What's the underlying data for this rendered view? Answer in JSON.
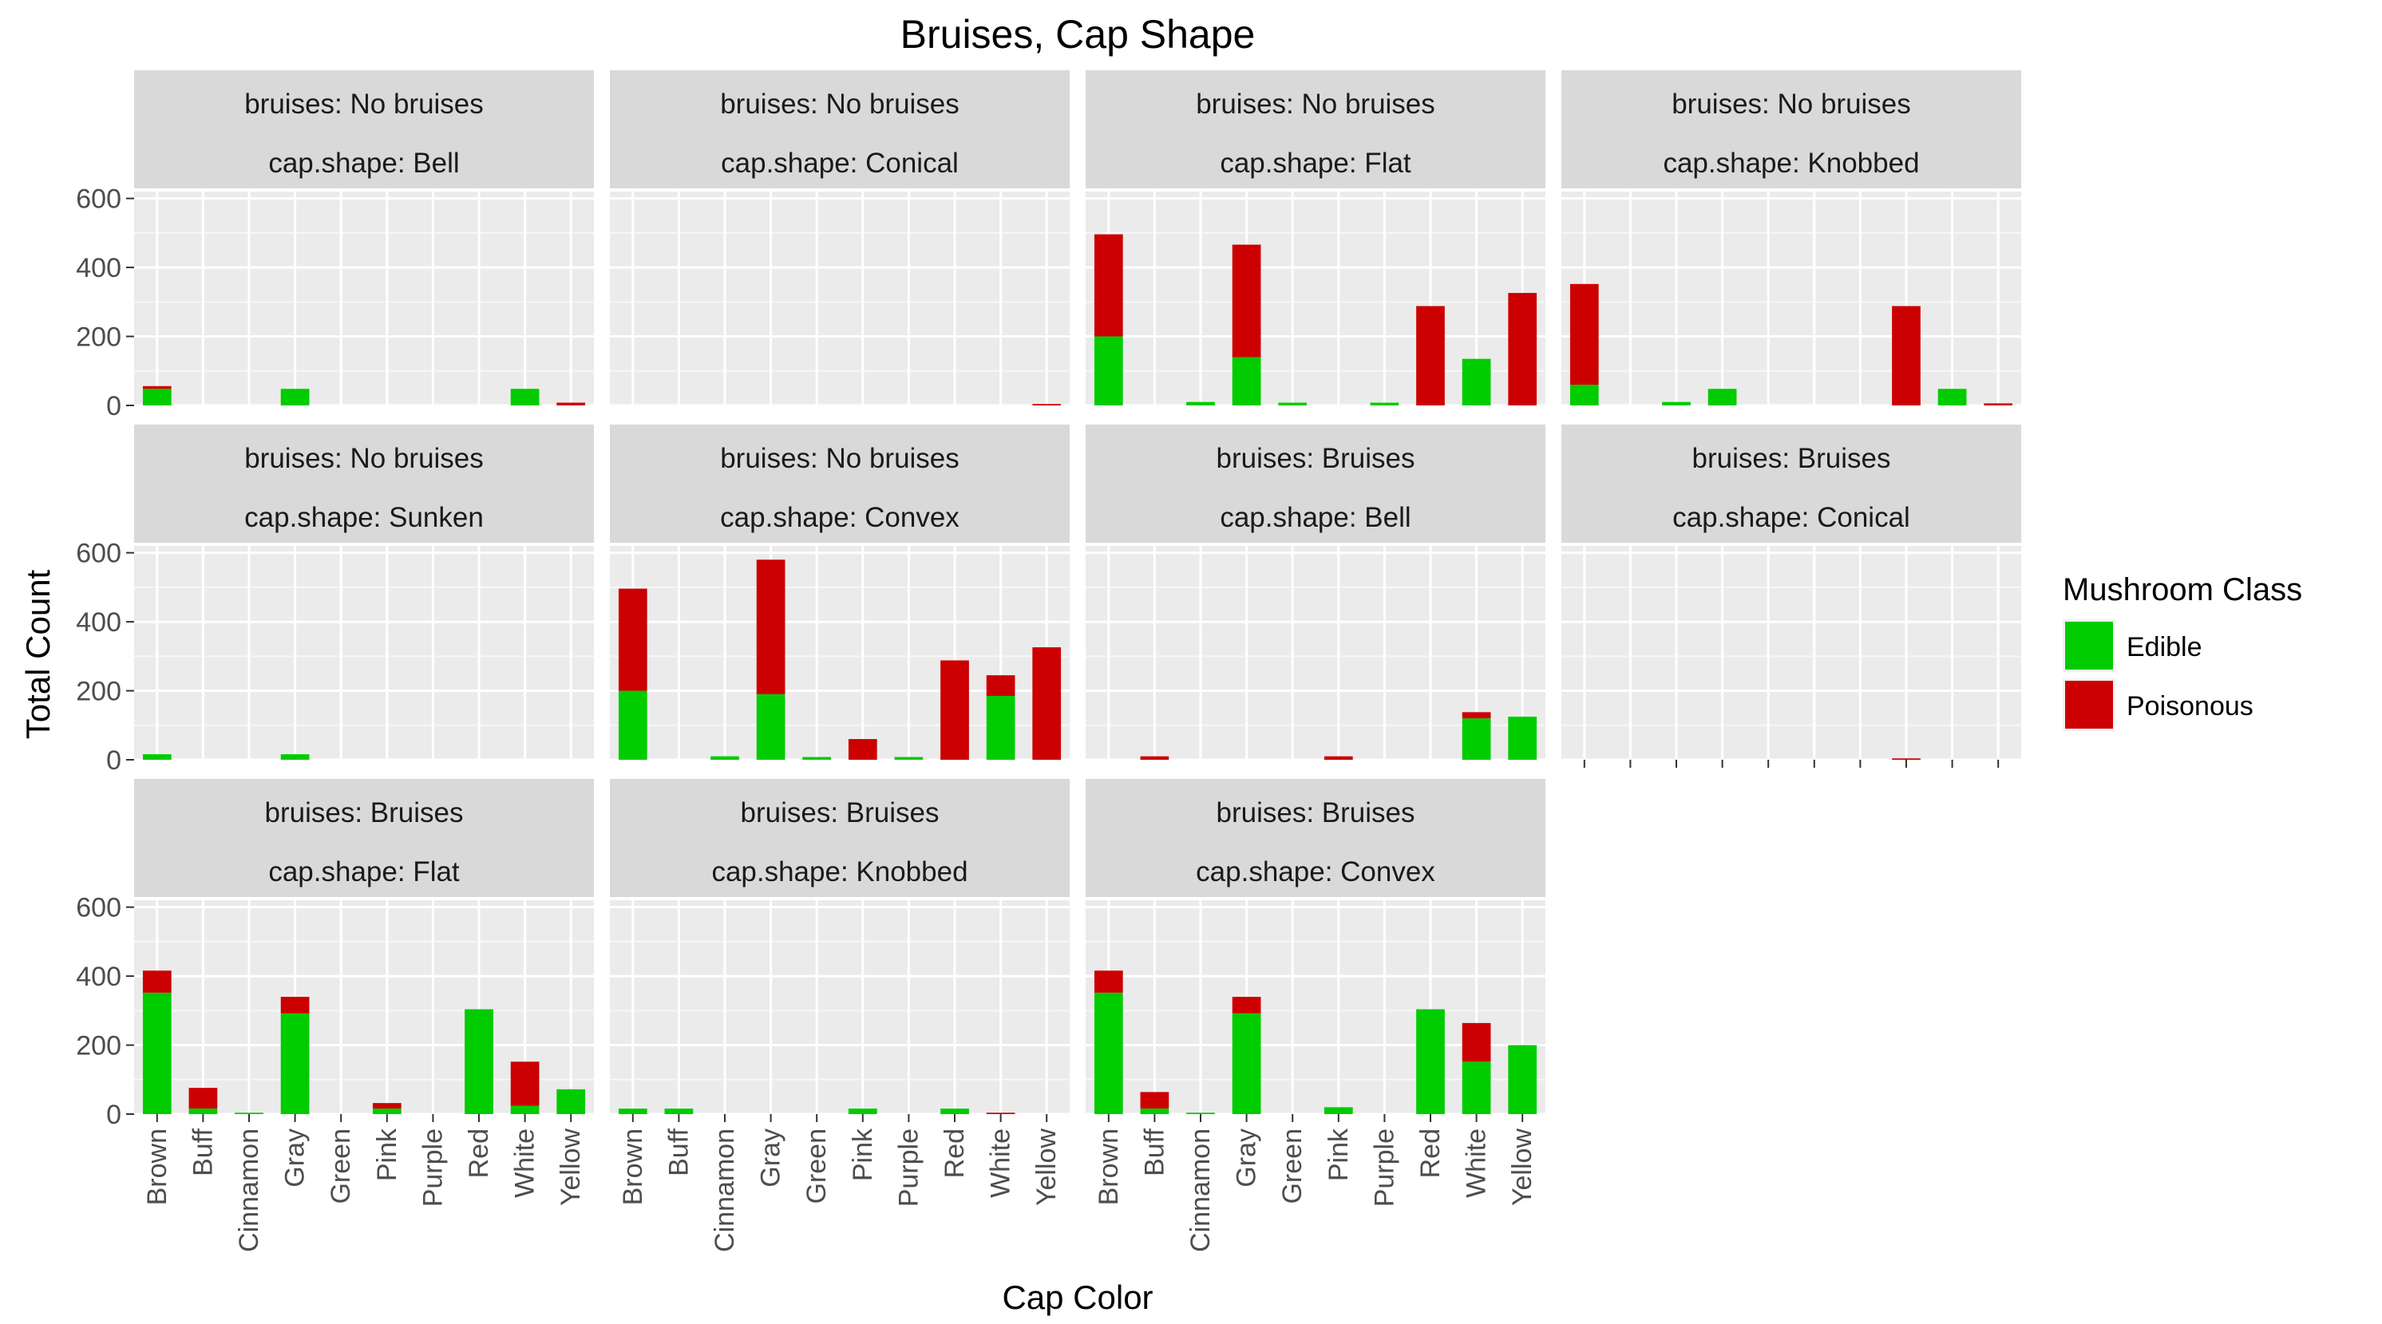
{
  "chart_data": {
    "type": "bar",
    "stacked": true,
    "title": "Bruises, Cap Shape",
    "xlabel": "Cap Color",
    "ylabel": "Total Count",
    "ylim": [
      0,
      620
    ],
    "yticks": [
      0,
      200,
      400,
      600
    ],
    "categories": [
      "Brown",
      "Buff",
      "Cinnamon",
      "Gray",
      "Green",
      "Pink",
      "Purple",
      "Red",
      "White",
      "Yellow"
    ],
    "legend": {
      "title": "Mushroom Class",
      "placement": "right",
      "entries": [
        {
          "name": "Edible",
          "color": "#00cc00"
        },
        {
          "name": "Poisonous",
          "color": "#cc0000"
        }
      ]
    },
    "grid": true,
    "panels": [
      {
        "line1": "bruises: No bruises",
        "line2": "cap.shape: Bell",
        "edible": [
          48,
          0,
          0,
          48,
          0,
          0,
          0,
          0,
          48,
          0
        ],
        "poisonous": [
          8,
          0,
          0,
          0,
          0,
          0,
          0,
          0,
          0,
          8
        ]
      },
      {
        "line1": "bruises: No bruises",
        "line2": "cap.shape: Conical",
        "edible": [
          0,
          0,
          0,
          0,
          0,
          0,
          0,
          0,
          0,
          0
        ],
        "poisonous": [
          0,
          0,
          0,
          0,
          0,
          0,
          0,
          0,
          0,
          4
        ]
      },
      {
        "line1": "bruises: No bruises",
        "line2": "cap.shape: Flat",
        "edible": [
          200,
          0,
          10,
          140,
          8,
          0,
          8,
          0,
          135,
          0
        ],
        "poisonous": [
          296,
          0,
          0,
          326,
          0,
          0,
          0,
          288,
          0,
          326
        ]
      },
      {
        "line1": "bruises: No bruises",
        "line2": "cap.shape: Knobbed",
        "edible": [
          60,
          0,
          10,
          48,
          0,
          0,
          0,
          0,
          48,
          0
        ],
        "poisonous": [
          292,
          0,
          0,
          0,
          0,
          0,
          0,
          288,
          0,
          6
        ]
      },
      {
        "line1": "bruises: No bruises",
        "line2": "cap.shape: Sunken",
        "edible": [
          16,
          0,
          0,
          16,
          0,
          0,
          0,
          0,
          0,
          0
        ],
        "poisonous": [
          0,
          0,
          0,
          0,
          0,
          0,
          0,
          0,
          0,
          0
        ]
      },
      {
        "line1": "bruises: No bruises",
        "line2": "cap.shape: Convex",
        "edible": [
          200,
          0,
          10,
          190,
          8,
          0,
          8,
          0,
          185,
          0
        ],
        "poisonous": [
          296,
          0,
          0,
          390,
          0,
          60,
          0,
          288,
          60,
          326
        ]
      },
      {
        "line1": "bruises: Bruises",
        "line2": "cap.shape: Bell",
        "edible": [
          0,
          0,
          0,
          0,
          0,
          0,
          0,
          0,
          120,
          125
        ],
        "poisonous": [
          0,
          10,
          0,
          0,
          0,
          10,
          0,
          0,
          18,
          0
        ]
      },
      {
        "line1": "bruises: Bruises",
        "line2": "cap.shape: Conical",
        "edible": [
          0,
          0,
          0,
          0,
          0,
          0,
          0,
          0,
          0,
          0
        ],
        "poisonous": [
          0,
          0,
          0,
          0,
          0,
          0,
          0,
          4,
          0,
          0
        ]
      },
      {
        "line1": "bruises: Bruises",
        "line2": "cap.shape: Flat",
        "edible": [
          352,
          16,
          4,
          292,
          0,
          16,
          0,
          304,
          24,
          72
        ],
        "poisonous": [
          64,
          60,
          0,
          48,
          0,
          16,
          0,
          0,
          128,
          0
        ]
      },
      {
        "line1": "bruises: Bruises",
        "line2": "cap.shape: Knobbed",
        "edible": [
          16,
          16,
          0,
          0,
          0,
          16,
          0,
          16,
          0,
          0
        ],
        "poisonous": [
          0,
          0,
          0,
          0,
          0,
          0,
          0,
          0,
          4,
          0
        ]
      },
      {
        "line1": "bruises: Bruises",
        "line2": "cap.shape: Convex",
        "edible": [
          352,
          16,
          4,
          292,
          0,
          20,
          0,
          304,
          152,
          200
        ],
        "poisonous": [
          64,
          48,
          0,
          48,
          0,
          0,
          0,
          0,
          112,
          0
        ]
      }
    ]
  }
}
